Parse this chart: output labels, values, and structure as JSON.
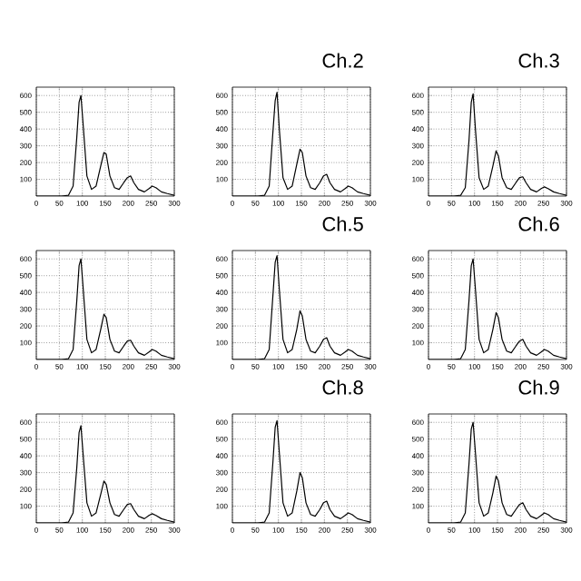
{
  "chart_data": [
    {
      "type": "line",
      "color": "#000000",
      "x": [
        0,
        55,
        70,
        80,
        88,
        93,
        97,
        102,
        110,
        120,
        130,
        140,
        147,
        152,
        160,
        170,
        180,
        190,
        198,
        205,
        212,
        222,
        235,
        245,
        252,
        260,
        272,
        285,
        300
      ],
      "values": [
        0,
        0,
        5,
        60,
        350,
        560,
        600,
        420,
        120,
        40,
        60,
        180,
        260,
        250,
        120,
        50,
        40,
        80,
        110,
        120,
        80,
        40,
        25,
        45,
        60,
        50,
        25,
        15,
        5
      ],
      "xlim": [
        0,
        300
      ],
      "ylim": [
        0,
        650
      ],
      "xticks": [
        0,
        50,
        100,
        150,
        200,
        250,
        300
      ],
      "yticks": [
        100,
        200,
        300,
        400,
        500,
        600
      ],
      "grid": true
    },
    {
      "type": "line",
      "title": "Ch.2",
      "color": "#000000",
      "x": [
        0,
        55,
        70,
        80,
        88,
        93,
        97,
        102,
        110,
        120,
        130,
        140,
        147,
        152,
        160,
        170,
        180,
        190,
        198,
        205,
        212,
        222,
        235,
        245,
        252,
        260,
        272,
        285,
        300
      ],
      "values": [
        0,
        0,
        5,
        60,
        380,
        570,
        620,
        400,
        110,
        40,
        60,
        190,
        280,
        260,
        120,
        50,
        40,
        80,
        120,
        130,
        80,
        40,
        25,
        45,
        60,
        50,
        25,
        15,
        5
      ],
      "xlim": [
        0,
        300
      ],
      "ylim": [
        0,
        650
      ],
      "xticks": [
        0,
        50,
        100,
        150,
        200,
        250,
        300
      ],
      "yticks": [
        100,
        200,
        300,
        400,
        500,
        600
      ],
      "grid": true
    },
    {
      "type": "line",
      "title": "Ch.3",
      "color": "#000000",
      "x": [
        0,
        55,
        70,
        80,
        88,
        93,
        97,
        102,
        110,
        120,
        130,
        140,
        147,
        152,
        160,
        170,
        180,
        190,
        198,
        205,
        212,
        222,
        235,
        245,
        252,
        260,
        272,
        285,
        300
      ],
      "values": [
        0,
        0,
        5,
        50,
        330,
        560,
        610,
        400,
        110,
        40,
        60,
        180,
        270,
        240,
        110,
        50,
        40,
        80,
        110,
        115,
        80,
        40,
        25,
        45,
        55,
        45,
        25,
        15,
        5
      ],
      "xlim": [
        0,
        300
      ],
      "ylim": [
        0,
        650
      ],
      "xticks": [
        0,
        50,
        100,
        150,
        200,
        250,
        300
      ],
      "yticks": [
        100,
        200,
        300,
        400,
        500,
        600
      ],
      "grid": true
    },
    {
      "type": "line",
      "color": "#000000",
      "x": [
        0,
        55,
        70,
        80,
        88,
        93,
        97,
        102,
        110,
        120,
        130,
        140,
        147,
        152,
        160,
        170,
        180,
        190,
        198,
        205,
        212,
        222,
        235,
        245,
        252,
        260,
        272,
        285,
        300
      ],
      "values": [
        0,
        0,
        5,
        60,
        350,
        560,
        600,
        420,
        120,
        40,
        60,
        180,
        270,
        250,
        120,
        50,
        40,
        80,
        110,
        115,
        80,
        40,
        25,
        45,
        60,
        50,
        25,
        15,
        5
      ],
      "xlim": [
        0,
        300
      ],
      "ylim": [
        0,
        650
      ],
      "xticks": [
        0,
        50,
        100,
        150,
        200,
        250,
        300
      ],
      "yticks": [
        100,
        200,
        300,
        400,
        500,
        600
      ],
      "grid": true
    },
    {
      "type": "line",
      "title": "Ch.5",
      "color": "#000000",
      "x": [
        0,
        55,
        70,
        80,
        88,
        93,
        97,
        102,
        110,
        120,
        130,
        140,
        147,
        152,
        160,
        170,
        180,
        190,
        198,
        205,
        212,
        222,
        235,
        245,
        252,
        260,
        272,
        285,
        300
      ],
      "values": [
        0,
        0,
        5,
        60,
        380,
        580,
        620,
        420,
        120,
        40,
        60,
        180,
        290,
        260,
        120,
        50,
        40,
        80,
        120,
        130,
        80,
        40,
        25,
        45,
        60,
        50,
        25,
        15,
        5
      ],
      "xlim": [
        0,
        300
      ],
      "ylim": [
        0,
        650
      ],
      "xticks": [
        0,
        50,
        100,
        150,
        200,
        250,
        300
      ],
      "yticks": [
        100,
        200,
        300,
        400,
        500,
        600
      ],
      "grid": true
    },
    {
      "type": "line",
      "title": "Ch.6",
      "color": "#000000",
      "x": [
        0,
        55,
        70,
        80,
        88,
        93,
        97,
        102,
        110,
        120,
        130,
        140,
        147,
        152,
        160,
        170,
        180,
        190,
        198,
        205,
        212,
        222,
        235,
        245,
        252,
        260,
        272,
        285,
        300
      ],
      "values": [
        0,
        0,
        5,
        60,
        350,
        560,
        600,
        420,
        120,
        40,
        60,
        180,
        280,
        250,
        120,
        50,
        40,
        80,
        110,
        120,
        80,
        40,
        25,
        45,
        60,
        50,
        25,
        15,
        5
      ],
      "xlim": [
        0,
        300
      ],
      "ylim": [
        0,
        650
      ],
      "xticks": [
        0,
        50,
        100,
        150,
        200,
        250,
        300
      ],
      "yticks": [
        100,
        200,
        300,
        400,
        500,
        600
      ],
      "grid": true
    },
    {
      "type": "line",
      "color": "#000000",
      "x": [
        0,
        55,
        70,
        80,
        88,
        93,
        97,
        102,
        110,
        120,
        130,
        140,
        147,
        152,
        160,
        170,
        180,
        190,
        198,
        205,
        212,
        222,
        235,
        245,
        252,
        260,
        272,
        285,
        300
      ],
      "values": [
        0,
        0,
        5,
        60,
        330,
        540,
        580,
        400,
        120,
        40,
        60,
        170,
        250,
        230,
        120,
        50,
        40,
        80,
        110,
        115,
        80,
        40,
        25,
        45,
        55,
        45,
        25,
        15,
        5
      ],
      "xlim": [
        0,
        300
      ],
      "ylim": [
        0,
        650
      ],
      "xticks": [
        0,
        50,
        100,
        150,
        200,
        250,
        300
      ],
      "yticks": [
        100,
        200,
        300,
        400,
        500,
        600
      ],
      "grid": true
    },
    {
      "type": "line",
      "title": "Ch.8",
      "color": "#000000",
      "x": [
        0,
        55,
        70,
        80,
        88,
        93,
        97,
        102,
        110,
        120,
        130,
        140,
        147,
        152,
        160,
        170,
        180,
        190,
        198,
        205,
        212,
        222,
        235,
        245,
        252,
        260,
        272,
        285,
        300
      ],
      "values": [
        0,
        0,
        5,
        60,
        360,
        570,
        610,
        420,
        120,
        40,
        60,
        190,
        300,
        270,
        120,
        50,
        40,
        80,
        120,
        130,
        80,
        40,
        25,
        45,
        60,
        50,
        25,
        15,
        5
      ],
      "xlim": [
        0,
        300
      ],
      "ylim": [
        0,
        650
      ],
      "xticks": [
        0,
        50,
        100,
        150,
        200,
        250,
        300
      ],
      "yticks": [
        100,
        200,
        300,
        400,
        500,
        600
      ],
      "grid": true
    },
    {
      "type": "line",
      "title": "Ch.9",
      "color": "#000000",
      "x": [
        0,
        55,
        70,
        80,
        88,
        93,
        97,
        102,
        110,
        120,
        130,
        140,
        147,
        152,
        160,
        170,
        180,
        190,
        198,
        205,
        212,
        222,
        235,
        245,
        252,
        260,
        272,
        285,
        300
      ],
      "values": [
        0,
        0,
        5,
        60,
        350,
        560,
        600,
        420,
        120,
        40,
        60,
        180,
        280,
        250,
        120,
        50,
        40,
        80,
        110,
        120,
        80,
        40,
        25,
        45,
        60,
        50,
        25,
        15,
        5
      ],
      "xlim": [
        0,
        300
      ],
      "ylim": [
        0,
        650
      ],
      "xticks": [
        0,
        50,
        100,
        150,
        200,
        250,
        300
      ],
      "yticks": [
        100,
        200,
        300,
        400,
        500,
        600
      ],
      "grid": true
    }
  ]
}
